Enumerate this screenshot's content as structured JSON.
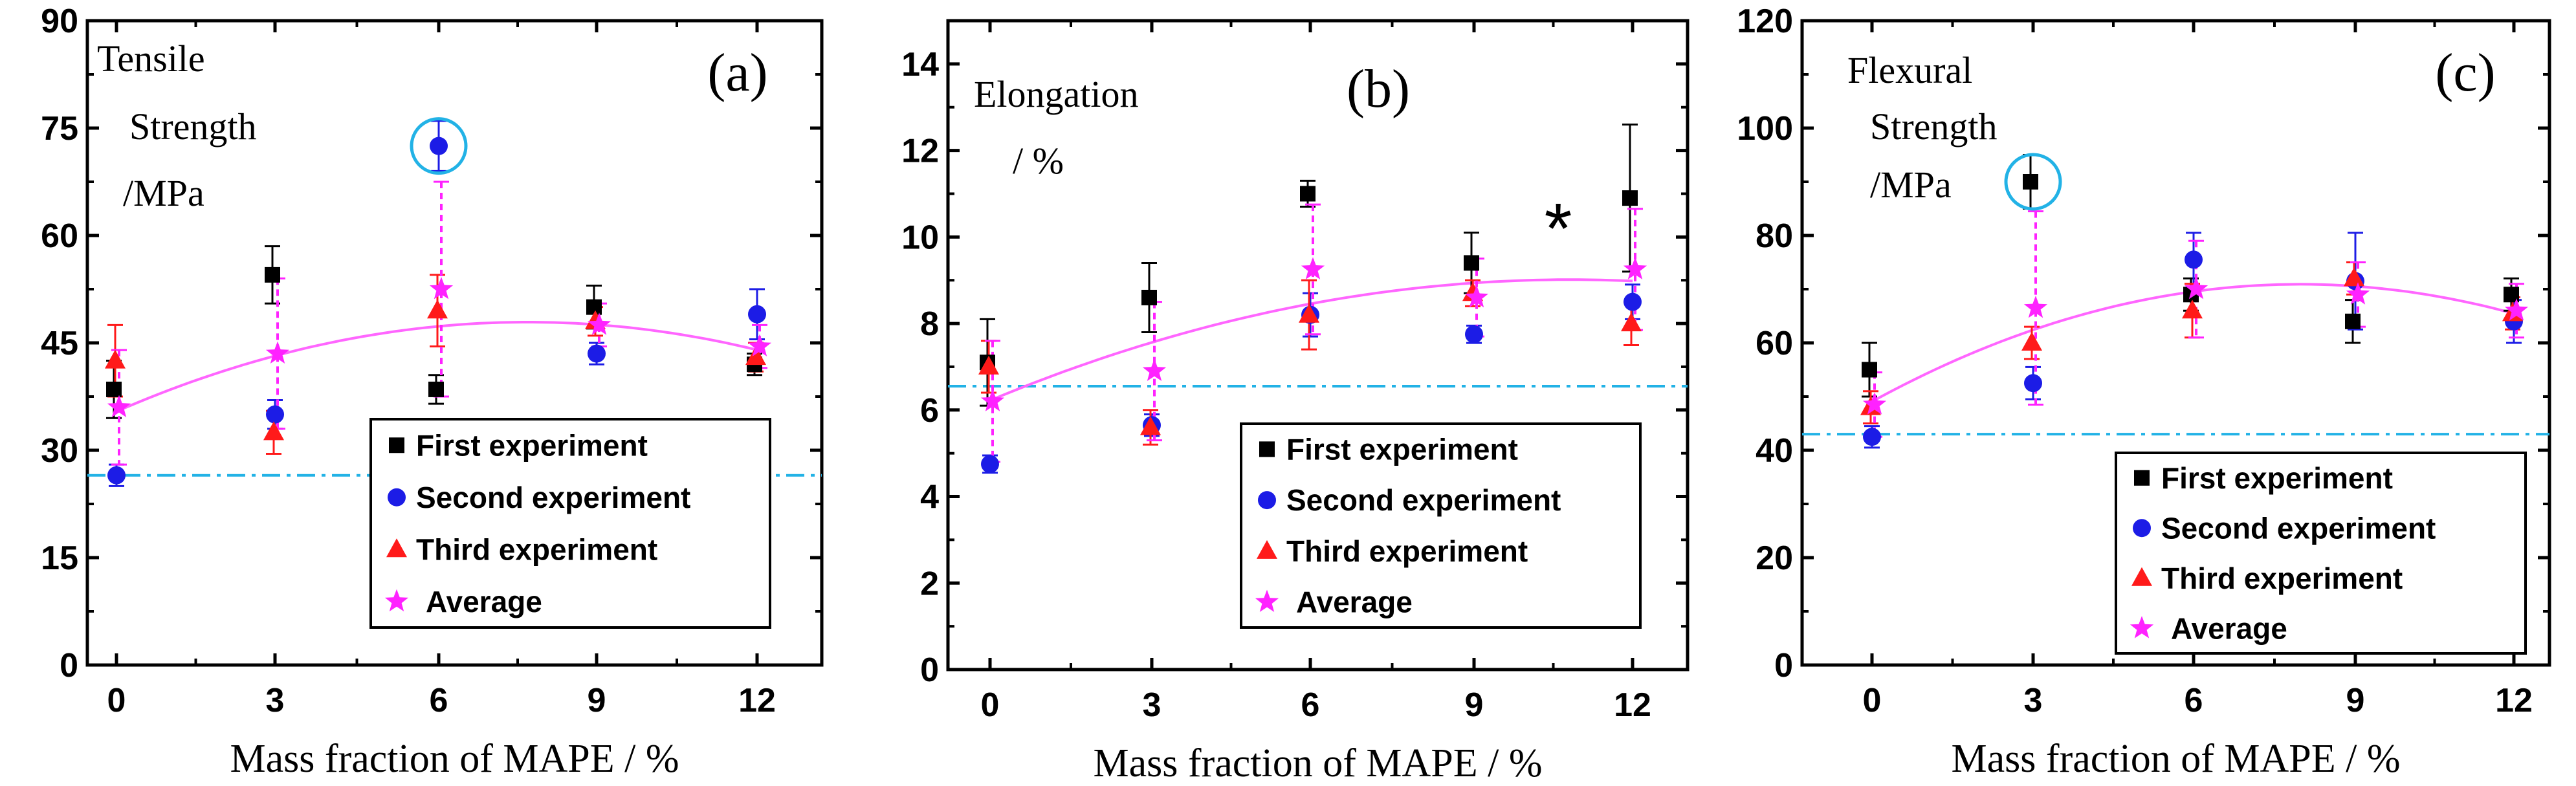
{
  "colors": {
    "first": "#000000",
    "second": "#1c1ce6",
    "third": "#ff1a1a",
    "average": "#ff22ff",
    "fit": "#ff66ff",
    "reference": "#22b2e6",
    "highlight": "#22b2e6"
  },
  "legend": [
    {
      "key": "first",
      "label": "First experiment",
      "marker": "square"
    },
    {
      "key": "second",
      "label": "Second experiment",
      "marker": "circle"
    },
    {
      "key": "third",
      "label": "Third experiment",
      "marker": "triangle"
    },
    {
      "key": "average",
      "label": "Average",
      "marker": "star"
    }
  ],
  "chart_data": [
    {
      "type": "scatter",
      "panel": "(a)",
      "annotation_lines": [
        "Tensile",
        "Strength",
        "/MPa"
      ],
      "xlabel": "Mass fraction of MAPE / %",
      "x": [
        0,
        3,
        6,
        9,
        12
      ],
      "xticks": [
        "0",
        "3",
        "6",
        "9",
        "12"
      ],
      "ylim": [
        0,
        90
      ],
      "yticks": [
        "0",
        "15",
        "30",
        "45",
        "60",
        "75",
        "90"
      ],
      "reference_line": 26.5,
      "fit": [
        35.5,
        43,
        47.5,
        47.5,
        44
      ],
      "series": {
        "first": {
          "values": [
            38.5,
            54.5,
            38.5,
            50,
            42
          ],
          "errors": [
            4,
            4,
            2,
            3,
            1.5
          ]
        },
        "second": {
          "values": [
            26.5,
            35,
            72.5,
            43.5,
            49
          ],
          "errors": [
            1.5,
            2,
            3.5,
            1.5,
            3.5
          ]
        },
        "third": {
          "values": [
            42.5,
            32.5,
            49.5,
            48,
            43
          ],
          "errors": [
            5,
            3,
            5,
            2,
            2
          ]
        },
        "average": {
          "values": [
            36,
            43.5,
            52.5,
            47.5,
            44.5
          ],
          "errors": [
            8,
            10.5,
            15,
            3,
            3
          ]
        }
      },
      "highlight": {
        "series": "second",
        "index": 2
      },
      "note": ""
    },
    {
      "type": "scatter",
      "panel": "(b)",
      "annotation_lines": [
        "Elongation",
        "/ %"
      ],
      "xlabel": "Mass fraction of MAPE / %",
      "x": [
        0,
        3,
        6,
        9,
        12
      ],
      "xticks": [
        "0",
        "3",
        "6",
        "9",
        "12"
      ],
      "ylim": [
        0,
        15
      ],
      "yticks": [
        "0",
        "2",
        "4",
        "6",
        "8",
        "10",
        "12",
        "14"
      ],
      "reference_line": 6.55,
      "fit": [
        6.2,
        7.6,
        8.45,
        8.9,
        9.0
      ],
      "series": {
        "first": {
          "values": [
            7.1,
            8.6,
            11,
            9.4,
            10.9
          ],
          "errors": [
            1,
            0.8,
            0.3,
            0.7,
            1.7
          ]
        },
        "second": {
          "values": [
            4.75,
            5.65,
            8.2,
            7.75,
            8.5
          ],
          "errors": [
            0.2,
            0.25,
            0.5,
            0.2,
            0.4
          ]
        },
        "third": {
          "values": [
            7,
            5.6,
            8.2,
            8.7,
            8.0
          ],
          "errors": [
            0.6,
            0.4,
            0.8,
            0.3,
            0.5
          ]
        },
        "average": {
          "values": [
            6.2,
            6.9,
            9.25,
            8.6,
            9.25
          ],
          "errors": [
            1.4,
            1.6,
            1.5,
            0.9,
            1.4
          ]
        }
      },
      "highlight": null,
      "note": "*"
    },
    {
      "type": "scatter",
      "panel": "(c)",
      "annotation_lines": [
        "Flexural",
        "Strength",
        "/MPa"
      ],
      "xlabel": "Mass fraction of MAPE / %",
      "x": [
        0,
        3,
        6,
        9,
        12
      ],
      "xticks": [
        "0",
        "3",
        "6",
        "9",
        "12"
      ],
      "ylim": [
        0,
        120
      ],
      "yticks": [
        "0",
        "20",
        "40",
        "60",
        "80",
        "100",
        "120"
      ],
      "reference_line": 43,
      "fit": [
        49,
        62.5,
        69.5,
        70.5,
        65.5
      ],
      "series": {
        "first": {
          "values": [
            55,
            90,
            69,
            64,
            69
          ],
          "errors": [
            5,
            5,
            3,
            4,
            3
          ]
        },
        "second": {
          "values": [
            42.5,
            52.5,
            75.5,
            71.5,
            64
          ],
          "errors": [
            2,
            3,
            5,
            9,
            4
          ]
        },
        "third": {
          "values": [
            48,
            60,
            66,
            72,
            65.5
          ],
          "errors": [
            3,
            3,
            5,
            3,
            3
          ]
        },
        "average": {
          "values": [
            48.5,
            66.5,
            70,
            69,
            66
          ],
          "errors": [
            6,
            18,
            9,
            6,
            5
          ]
        }
      },
      "highlight": {
        "series": "first",
        "index": 1
      },
      "note": ""
    }
  ]
}
